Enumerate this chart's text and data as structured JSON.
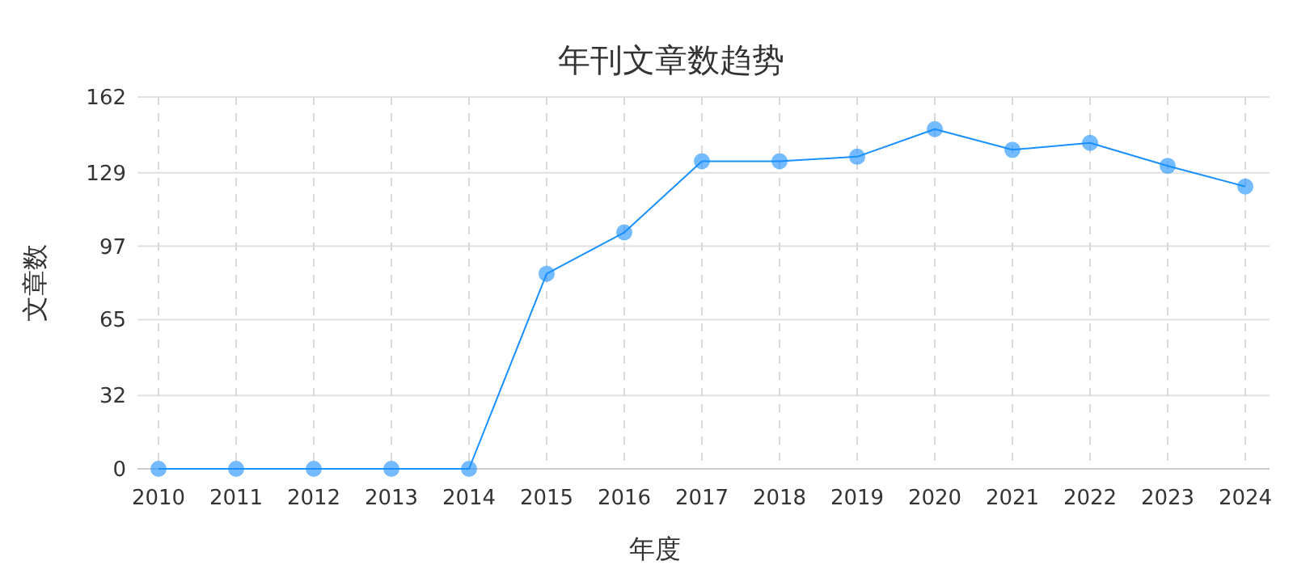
{
  "chart_data": {
    "type": "line",
    "title": "年刊文章数趋势",
    "xlabel": "年度",
    "ylabel": "文章数",
    "categories": [
      "2010",
      "2011",
      "2012",
      "2013",
      "2014",
      "2015",
      "2016",
      "2017",
      "2018",
      "2019",
      "2020",
      "2021",
      "2022",
      "2023",
      "2024"
    ],
    "series": [
      {
        "color": "#1890ff",
        "values": [
          0,
          0,
          0,
          0,
          0,
          85,
          103,
          134,
          134,
          136,
          148,
          139,
          142,
          132,
          123
        ]
      }
    ],
    "ylim": [
      0,
      162
    ],
    "yticks": [
      0,
      32,
      65,
      97,
      129,
      162
    ],
    "grid": true,
    "marker": "circle",
    "line_style": "solid"
  }
}
